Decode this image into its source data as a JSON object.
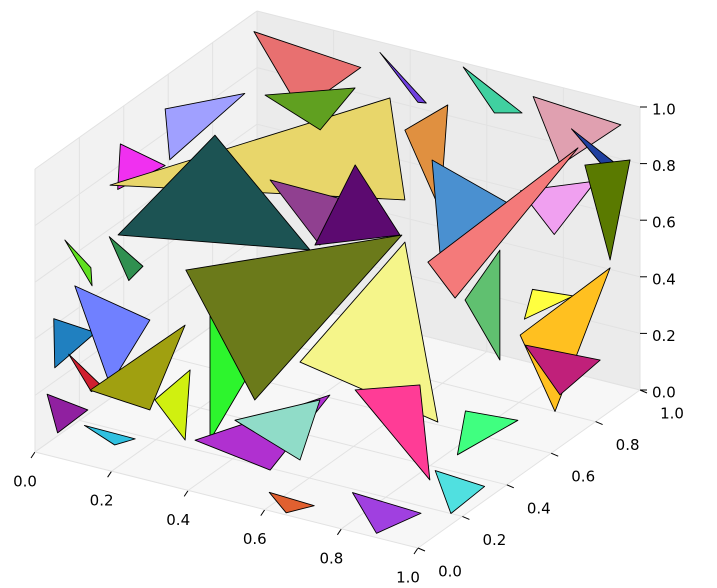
{
  "chart_data": {
    "type": "poly3d",
    "xlim": [
      0,
      1
    ],
    "ylim": [
      0,
      1
    ],
    "zlim": [
      0,
      1
    ],
    "xticks": [
      {
        "value": 0,
        "label": "0.0"
      },
      0.2,
      0.4,
      0.6,
      0.8,
      {
        "value": 1,
        "label": "1.0"
      }
    ],
    "yticks": [
      {
        "value": 0,
        "label": "0.0"
      },
      0.2,
      0.4,
      0.6,
      0.8,
      {
        "value": 1,
        "label": "1.0"
      }
    ],
    "zticks": [
      {
        "value": 0,
        "label": "0.0"
      },
      0.2,
      0.4,
      0.6,
      0.8,
      {
        "value": 1,
        "label": "1.0"
      }
    ],
    "grid": true,
    "polygons": [
      {
        "color": "#e87070",
        "vertices": [
          [
            0.05,
            0.9,
            1
          ],
          [
            0.3,
            0.95,
            0.93
          ],
          [
            0.2,
            0.85,
            0.8
          ]
        ]
      },
      {
        "color": "#7040e0",
        "vertices": [
          [
            0.35,
            0.95,
            1
          ],
          [
            0.5,
            0.9,
            0.9
          ],
          [
            0.42,
            1,
            0.82
          ]
        ]
      },
      {
        "color": "#40d0a0",
        "vertices": [
          [
            0.55,
            0.98,
            1
          ],
          [
            0.75,
            0.9,
            0.95
          ],
          [
            0.62,
            1,
            0.85
          ]
        ]
      },
      {
        "color": "#e0a0b0",
        "vertices": [
          [
            0.75,
            0.95,
            0.98
          ],
          [
            0.95,
            1,
            0.92
          ],
          [
            0.85,
            0.9,
            0.8
          ]
        ]
      },
      {
        "color": "#2040a0",
        "vertices": [
          [
            0.85,
            0.95,
            0.9
          ],
          [
            1,
            0.9,
            0.85
          ],
          [
            0.95,
            1,
            0.7
          ]
        ]
      },
      {
        "color": "#f030f0",
        "vertices": [
          [
            0.02,
            0.35,
            0.9
          ],
          [
            0.1,
            0.2,
            0.85
          ],
          [
            0.05,
            0.5,
            0.75
          ]
        ]
      },
      {
        "color": "#60e020",
        "vertices": [
          [
            0.02,
            0.1,
            0.7
          ],
          [
            0.12,
            0.05,
            0.6
          ],
          [
            0.03,
            0.2,
            0.55
          ]
        ]
      },
      {
        "color": "#a0a0ff",
        "vertices": [
          [
            0.05,
            0.5,
            0.95
          ],
          [
            0.2,
            0.6,
            1
          ],
          [
            0.12,
            0.4,
            0.85
          ]
        ]
      },
      {
        "color": "#2080c0",
        "vertices": [
          [
            0.02,
            0.05,
            0.45
          ],
          [
            0.1,
            0.1,
            0.4
          ],
          [
            0.04,
            0.02,
            0.3
          ]
        ]
      },
      {
        "color": "#d02030",
        "vertices": [
          [
            0.03,
            0.1,
            0.3
          ],
          [
            0.15,
            0.05,
            0.25
          ],
          [
            0.06,
            0.15,
            0.15
          ]
        ]
      },
      {
        "color": "#30c0e0",
        "vertices": [
          [
            0.1,
            0.05,
            0.1
          ],
          [
            0.25,
            0.02,
            0.12
          ],
          [
            0.15,
            0.1,
            0.02
          ]
        ]
      },
      {
        "color": "#f0a0f0",
        "vertices": [
          [
            0.92,
            0.6,
            0.9
          ],
          [
            1,
            0.8,
            0.85
          ],
          [
            0.95,
            0.7,
            0.7
          ]
        ]
      },
      {
        "color": "#40ff80",
        "vertices": [
          [
            0.95,
            0.3,
            0.3
          ],
          [
            1,
            0.45,
            0.2
          ],
          [
            0.9,
            0.35,
            0.1
          ]
        ]
      },
      {
        "color": "#a040e0",
        "vertices": [
          [
            0.8,
            0.05,
            0.1
          ],
          [
            0.95,
            0.1,
            0.05
          ],
          [
            0.88,
            0.02,
            0
          ]
        ]
      },
      {
        "color": "#50e0e0",
        "vertices": [
          [
            0.9,
            0.25,
            0.1
          ],
          [
            1,
            0.3,
            0.05
          ],
          [
            0.97,
            0.2,
            0
          ]
        ]
      },
      {
        "color": "#e06030",
        "vertices": [
          [
            0.6,
            0.02,
            0.05
          ],
          [
            0.7,
            0.05,
            0.02
          ],
          [
            0.65,
            0.01,
            0
          ]
        ]
      },
      {
        "color": "#309050",
        "vertices": [
          [
            0.02,
            0.3,
            0.6
          ],
          [
            0.1,
            0.25,
            0.5
          ],
          [
            0.05,
            0.4,
            0.45
          ]
        ]
      },
      {
        "color": "#ffff40",
        "vertices": [
          [
            0.98,
            0.55,
            0.6
          ],
          [
            1,
            0.7,
            0.5
          ],
          [
            0.93,
            0.6,
            0.45
          ]
        ]
      },
      {
        "color": "#9020a0",
        "vertices": [
          [
            0.02,
            0.02,
            0.2
          ],
          [
            0.08,
            0.1,
            0.12
          ],
          [
            0.03,
            0.05,
            0.05
          ]
        ]
      },
      {
        "color": "#e8d66a",
        "vertices": [
          [
            0.022,
            0.3,
            0.783
          ],
          [
            0.405,
            0.9,
            0.886
          ],
          [
            0.676,
            0.5,
            0.841
          ]
        ]
      },
      {
        "color": "#60a020",
        "vertices": [
          [
            0.137,
            0.8,
            0.861
          ],
          [
            0.372,
            0.8,
            0.966
          ],
          [
            0.281,
            0.8,
            0.787
          ]
        ]
      },
      {
        "color": "#e09040",
        "vertices": [
          [
            0.502,
            0.8,
            0.861
          ],
          [
            0.614,
            0.8,
            0.988
          ],
          [
            0.594,
            0.8,
            0.61
          ]
        ]
      },
      {
        "color": "#1c5353",
        "vertices": [
          [
            0.043,
            0.3,
            0.614
          ],
          [
            0.238,
            0.4,
            0.977
          ],
          [
            0.544,
            0.3,
            0.731
          ]
        ]
      },
      {
        "color": "#904090",
        "vertices": [
          [
            0.324,
            0.5,
            0.792
          ],
          [
            0.52,
            0.5,
            0.788
          ],
          [
            0.454,
            0.5,
            0.606
          ]
        ]
      },
      {
        "color": "#5c0a70",
        "vertices": [
          [
            0.499,
            0.4,
            0.677
          ],
          [
            0.604,
            0.4,
            0.996
          ],
          [
            0.721,
            0.4,
            0.788
          ]
        ]
      },
      {
        "color": "#4a90d0",
        "vertices": [
          [
            0.631,
            0.7,
            0.855
          ],
          [
            0.861,
            0.7,
            0.756
          ],
          [
            0.652,
            0.7,
            0.527
          ]
        ]
      },
      {
        "color": "#5a7a00",
        "vertices": [
          [
            0.856,
            1,
            0.746
          ],
          [
            0.974,
            1,
            0.804
          ],
          [
            0.922,
            1,
            0.433
          ]
        ]
      },
      {
        "color": "#60c070",
        "vertices": [
          [
            0.775,
            0.6,
            0.465
          ],
          [
            0.866,
            0.6,
            0.672
          ],
          [
            0.866,
            0.6,
            0.284
          ]
        ]
      },
      {
        "color": "#f47a7a",
        "vertices": [
          [
            0.678,
            0.6,
            0.566
          ],
          [
            0.896,
            0.9,
            0.876
          ],
          [
            0.749,
            0.6,
            0.463
          ]
        ]
      },
      {
        "color": "#ffc020",
        "vertices": [
          [
            0.803,
            0.8,
            0.239
          ],
          [
            0.922,
            1,
            0.405
          ],
          [
            0.894,
            0.8,
            0
          ]
        ]
      },
      {
        "color": "#c0207a",
        "vertices": [
          [
            0.816,
            0.8,
            0.208
          ],
          [
            0.954,
            0.9,
            0.146
          ],
          [
            0.907,
            0.8,
            0.063
          ]
        ]
      },
      {
        "color": "#7080ff",
        "vertices": [
          [
            0.017,
            0.15,
            0.509
          ],
          [
            0.184,
            0.2,
            0.417
          ],
          [
            0.08,
            0.2,
            0.152
          ]
        ]
      },
      {
        "color": "#a0a010",
        "vertices": [
          [
            0.057,
            0.15,
            0.154
          ],
          [
            0.305,
            0.15,
            0.468
          ],
          [
            0.213,
            0.15,
            0.137
          ]
        ]
      },
      {
        "color": "#2df52d",
        "vertices": [
          [
            0.341,
            0.2,
            0.541
          ],
          [
            0.511,
            0.2,
            0.493
          ],
          [
            0.341,
            0.2,
            0.046
          ]
        ]
      },
      {
        "color": "#d0f010",
        "vertices": [
          [
            0.226,
            0.15,
            0.177
          ],
          [
            0.318,
            0.15,
            0.314
          ],
          [
            0.305,
            0.15,
            0.062
          ]
        ]
      },
      {
        "color": "#6b7a1a",
        "vertices": [
          [
            0.22,
            0.3,
            0.55
          ],
          [
            0.784,
            0.3,
            0.865
          ],
          [
            0.4,
            0.3,
            0.152
          ]
        ]
      },
      {
        "color": "#f5f58a",
        "vertices": [
          [
            0.518,
            0.3,
            0.326
          ],
          [
            0.792,
            0.3,
            0.843
          ],
          [
            0.878,
            0.3,
            0.236
          ]
        ]
      },
      {
        "color": "#b030d0",
        "vertices": [
          [
            0.36,
            0.1,
            0.108
          ],
          [
            0.712,
            0.1,
            0.387
          ],
          [
            0.556,
            0.1,
            0.069
          ]
        ]
      },
      {
        "color": "#90dcc8",
        "vertices": [
          [
            0.464,
            0.1,
            0.214
          ],
          [
            0.686,
            0.1,
            0.361
          ],
          [
            0.634,
            0.1,
            0.131
          ]
        ]
      },
      {
        "color": "#ff3c96",
        "vertices": [
          [
            0.72,
            0.2,
            0.352
          ],
          [
            0.889,
            0.2,
            0.427
          ],
          [
            0.915,
            0.2,
            0.1
          ]
        ]
      }
    ]
  }
}
